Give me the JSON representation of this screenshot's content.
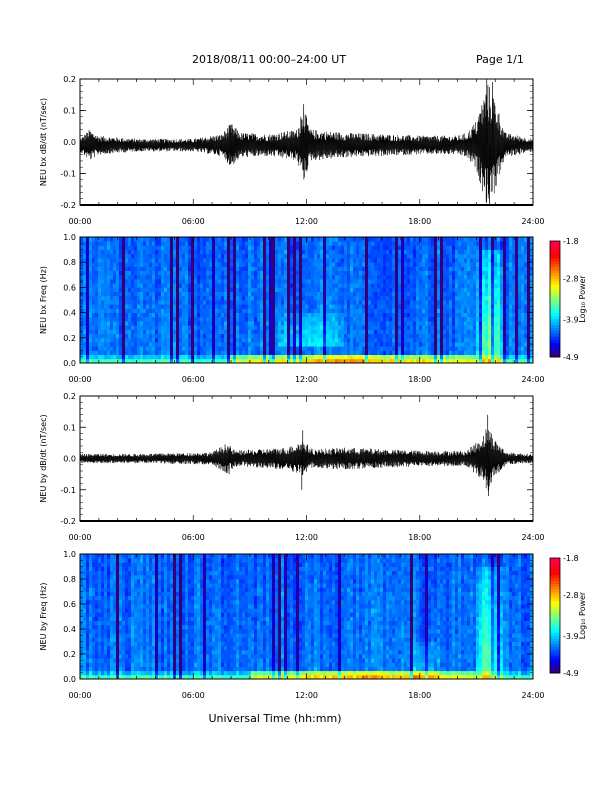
{
  "header": {
    "title": "2018/08/11  00:00–24:00 UT",
    "page": "Page 1/1"
  },
  "xlabel": "Universal Time (hh:mm)",
  "chart_data": [
    {
      "type": "line",
      "ylabel": "NEU bx dB/dt (nT/sec)",
      "x_range_hours": [
        0,
        24
      ],
      "x_tick_labels": [
        "00:00",
        "06:00",
        "12:00",
        "18:00",
        "24:00"
      ],
      "ylim": [
        -0.2,
        0.2
      ],
      "y_ticks": [
        -0.2,
        -0.1,
        0.0,
        0.1,
        0.2
      ],
      "y_tick_labels": [
        "-0.2",
        "-0.1",
        "0.0",
        "0.1",
        "0.2"
      ],
      "baseline": -0.01,
      "envelope": [
        {
          "t": 0.0,
          "a": 0.02
        },
        {
          "t": 0.5,
          "a": 0.05
        },
        {
          "t": 1.0,
          "a": 0.03
        },
        {
          "t": 3.0,
          "a": 0.02
        },
        {
          "t": 6.0,
          "a": 0.02
        },
        {
          "t": 7.5,
          "a": 0.035
        },
        {
          "t": 8.0,
          "a": 0.07
        },
        {
          "t": 8.5,
          "a": 0.04
        },
        {
          "t": 10.0,
          "a": 0.035
        },
        {
          "t": 11.5,
          "a": 0.05
        },
        {
          "t": 11.85,
          "a": 0.12
        },
        {
          "t": 12.2,
          "a": 0.05
        },
        {
          "t": 14.0,
          "a": 0.04
        },
        {
          "t": 16.0,
          "a": 0.035
        },
        {
          "t": 18.0,
          "a": 0.03
        },
        {
          "t": 20.0,
          "a": 0.03
        },
        {
          "t": 20.5,
          "a": 0.04
        },
        {
          "t": 21.0,
          "a": 0.08
        },
        {
          "t": 21.6,
          "a": 0.2
        },
        {
          "t": 22.0,
          "a": 0.15
        },
        {
          "t": 22.5,
          "a": 0.04
        },
        {
          "t": 24.0,
          "a": 0.02
        }
      ],
      "spikes": [
        {
          "t": 7.95,
          "v": -0.07
        },
        {
          "t": 11.85,
          "v": 0.12
        },
        {
          "t": 11.7,
          "v": 0.08
        },
        {
          "t": 21.55,
          "v": 0.2
        },
        {
          "t": 21.7,
          "v": -0.2
        },
        {
          "t": 21.85,
          "v": 0.19
        }
      ]
    },
    {
      "type": "heatmap",
      "ylabel": "NEU bx Freq (Hz)",
      "x_range_hours": [
        0,
        24
      ],
      "x_tick_labels": [
        "00:00",
        "06:00",
        "12:00",
        "18:00",
        "24:00"
      ],
      "ylim": [
        0,
        1.0
      ],
      "y_ticks": [
        0.0,
        0.2,
        0.4,
        0.6,
        0.8,
        1.0
      ],
      "y_tick_labels": [
        "0.0",
        "0.2",
        "0.4",
        "0.6",
        "0.8",
        "1.0"
      ],
      "colorbar": {
        "label": "Log₁₀ Power",
        "min": -4.9,
        "max": -1.8,
        "tick_labels": [
          "-1.8",
          "-2.8",
          "-3.9",
          "-4.9"
        ],
        "tick_values": [
          -1.8,
          -2.8,
          -3.9,
          -4.9
        ]
      },
      "features": [
        {
          "t0": 10.5,
          "t1": 14.0,
          "f0": 0.15,
          "f1": 0.4,
          "boost": 0.6
        },
        {
          "t0": 21.0,
          "t1": 22.4,
          "f0": 0.0,
          "f1": 0.9,
          "boost": 1.3
        },
        {
          "t0": 8.0,
          "t1": 21.0,
          "f0": 0.0,
          "f1": 0.06,
          "boost": 1.3
        }
      ]
    },
    {
      "type": "line",
      "ylabel": "NEU by dB/dt (nT/sec)",
      "x_range_hours": [
        0,
        24
      ],
      "x_tick_labels": [
        "00:00",
        "06:00",
        "12:00",
        "18:00",
        "24:00"
      ],
      "ylim": [
        -0.2,
        0.2
      ],
      "y_ticks": [
        -0.2,
        -0.1,
        0.0,
        0.1,
        0.2
      ],
      "y_tick_labels": [
        "-0.2",
        "-0.1",
        "0.0",
        "0.1",
        "0.2"
      ],
      "baseline": 0.0,
      "envelope": [
        {
          "t": 0.0,
          "a": 0.015
        },
        {
          "t": 3.0,
          "a": 0.015
        },
        {
          "t": 7.0,
          "a": 0.02
        },
        {
          "t": 7.8,
          "a": 0.05
        },
        {
          "t": 8.2,
          "a": 0.025
        },
        {
          "t": 9.5,
          "a": 0.03
        },
        {
          "t": 11.0,
          "a": 0.035
        },
        {
          "t": 11.8,
          "a": 0.06
        },
        {
          "t": 12.3,
          "a": 0.03
        },
        {
          "t": 14.0,
          "a": 0.035
        },
        {
          "t": 16.0,
          "a": 0.03
        },
        {
          "t": 18.0,
          "a": 0.025
        },
        {
          "t": 20.5,
          "a": 0.025
        },
        {
          "t": 21.3,
          "a": 0.07
        },
        {
          "t": 21.6,
          "a": 0.11
        },
        {
          "t": 22.0,
          "a": 0.06
        },
        {
          "t": 22.6,
          "a": 0.02
        },
        {
          "t": 24.0,
          "a": 0.015
        }
      ],
      "spikes": [
        {
          "t": 11.8,
          "v": 0.09
        },
        {
          "t": 11.75,
          "v": -0.1
        },
        {
          "t": 21.6,
          "v": 0.14
        },
        {
          "t": 21.65,
          "v": -0.12
        },
        {
          "t": 7.9,
          "v": -0.05
        }
      ]
    },
    {
      "type": "heatmap",
      "ylabel": "NEU by Freq (Hz)",
      "x_range_hours": [
        0,
        24
      ],
      "x_tick_labels": [
        "00:00",
        "06:00",
        "12:00",
        "18:00",
        "24:00"
      ],
      "ylim": [
        0,
        1.0
      ],
      "y_ticks": [
        0.0,
        0.2,
        0.4,
        0.6,
        0.8,
        1.0
      ],
      "y_tick_labels": [
        "0.0",
        "0.2",
        "0.4",
        "0.6",
        "0.8",
        "1.0"
      ],
      "colorbar": {
        "label": "Log₁₀ Power",
        "min": -4.9,
        "max": -1.8,
        "tick_labels": [
          "-1.8",
          "-2.8",
          "-3.9",
          "-4.9"
        ],
        "tick_values": [
          -1.8,
          -2.8,
          -3.9,
          -4.9
        ]
      },
      "features": [
        {
          "t0": 17.5,
          "t1": 19.0,
          "f0": 0.0,
          "f1": 0.3,
          "boost": 0.5
        },
        {
          "t0": 21.0,
          "t1": 22.4,
          "f0": 0.0,
          "f1": 0.9,
          "boost": 1.2
        },
        {
          "t0": 9.0,
          "t1": 21.0,
          "f0": 0.0,
          "f1": 0.05,
          "boost": 1.2
        }
      ]
    }
  ]
}
